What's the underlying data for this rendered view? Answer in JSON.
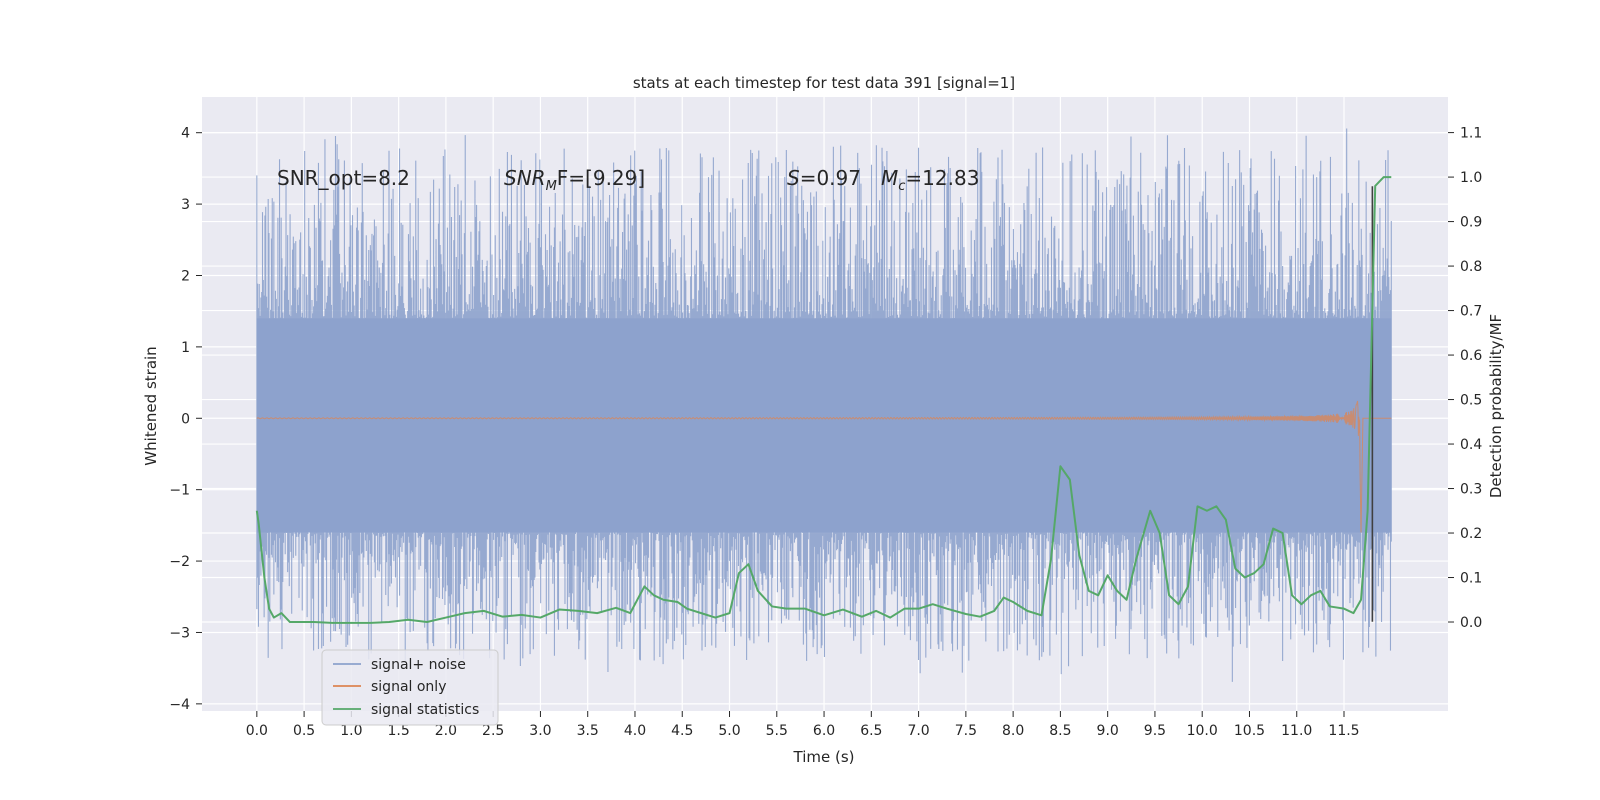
{
  "chart_data": {
    "type": "line",
    "title": "stats at each timestep for test data 391 [signal=1]",
    "xlabel": "Time (s)",
    "ylabel": "Whitened strain",
    "ylabel_right": "Detection probability/MF",
    "xlim": [
      -0.58,
      12.6
    ],
    "ylim": [
      -4.1,
      4.5
    ],
    "ylim_right": [
      -0.2,
      1.18
    ],
    "x_ticks": [
      0.0,
      0.5,
      1.0,
      1.5,
      2.0,
      2.5,
      3.0,
      3.5,
      4.0,
      4.5,
      5.0,
      5.5,
      6.0,
      6.5,
      7.0,
      7.5,
      8.0,
      8.5,
      9.0,
      9.5,
      10.0,
      10.5,
      11.0,
      11.5
    ],
    "x_tick_labels": [
      "0.0",
      "0.5",
      "1.0",
      "1.5",
      "2.0",
      "2.5",
      "3.0",
      "3.5",
      "4.0",
      "4.5",
      "5.0",
      "5.5",
      "6.0",
      "6.5",
      "7.0",
      "7.5",
      "8.0",
      "8.5",
      "9.0",
      "9.5",
      "10.0",
      "10.5",
      "11.0",
      "11.5"
    ],
    "y_ticks": [
      4,
      3,
      2,
      1,
      0,
      -1,
      -2,
      -3,
      -4
    ],
    "y_tick_labels": [
      "4",
      "3",
      "2",
      "1",
      "0",
      "−1",
      "−2",
      "−3",
      "−4"
    ],
    "y_right_ticks": [
      1.1,
      1.0,
      0.9,
      0.8,
      0.7,
      0.6,
      0.5,
      0.4,
      0.3,
      0.2,
      0.1,
      0.0
    ],
    "y_right_tick_labels": [
      "1.1",
      "1.0",
      "0.9",
      "0.8",
      "0.7",
      "0.6",
      "0.5",
      "0.4",
      "0.3",
      "0.2",
      "0.1",
      "0.0"
    ],
    "annotations": {
      "snr_opt": "SNR_opt=8.2",
      "snr_mf_base": "SNR",
      "snr_mf_sub": "M",
      "snr_mf_rest": "F=[9.29]",
      "s_symbol": "S",
      "s_value": "=0.97",
      "mc_symbol": "M",
      "mc_sub": "c",
      "mc_value": "=12.83"
    },
    "legend": {
      "position": "lower-left",
      "entries": [
        "signal+ noise",
        "signal only",
        "signal statistics"
      ]
    },
    "colors": {
      "plot_bg": "#eaeaf2",
      "grid": "#ffffff",
      "noise": "#8da2cc",
      "signal": "#dd8452",
      "stats": "#55a868",
      "marker": "#404040",
      "text": "#262626"
    },
    "series": [
      {
        "name": "signal+ noise",
        "kind": "noise_band",
        "x_range": [
          0.0,
          12.0
        ],
        "envelope_upper": 1.4,
        "envelope_lower": -1.6,
        "peak_max": 4.1,
        "peak_min": -3.7
      },
      {
        "name": "signal only",
        "kind": "chirp",
        "x_range": [
          0.0,
          12.0
        ],
        "merger_time": 11.67,
        "peak_amplitude": 1.2,
        "peak_min": -1.6
      },
      {
        "name": "signal statistics",
        "axis": "right",
        "x": [
          0.0,
          0.02,
          0.08,
          0.13,
          0.18,
          0.26,
          0.35,
          0.45,
          0.6,
          0.8,
          1.0,
          1.2,
          1.4,
          1.6,
          1.8,
          2.0,
          2.2,
          2.4,
          2.6,
          2.8,
          3.0,
          3.2,
          3.4,
          3.6,
          3.8,
          3.95,
          4.1,
          4.2,
          4.3,
          4.45,
          4.55,
          4.7,
          4.85,
          5.0,
          5.1,
          5.2,
          5.3,
          5.45,
          5.6,
          5.8,
          6.0,
          6.2,
          6.4,
          6.55,
          6.7,
          6.85,
          7.0,
          7.15,
          7.3,
          7.5,
          7.65,
          7.8,
          7.9,
          8.0,
          8.15,
          8.3,
          8.4,
          8.5,
          8.6,
          8.7,
          8.8,
          8.9,
          9.0,
          9.1,
          9.2,
          9.3,
          9.45,
          9.55,
          9.65,
          9.75,
          9.85,
          9.95,
          10.05,
          10.15,
          10.25,
          10.35,
          10.45,
          10.55,
          10.65,
          10.75,
          10.85,
          10.95,
          11.05,
          11.15,
          11.25,
          11.35,
          11.5,
          11.6,
          11.68,
          11.75,
          11.83,
          11.92,
          12.0
        ],
        "y": [
          0.25,
          0.22,
          0.1,
          0.03,
          0.01,
          0.02,
          0.0,
          0.0,
          0.0,
          -0.002,
          -0.002,
          -0.002,
          0.0,
          0.005,
          0.0,
          0.01,
          0.02,
          0.025,
          0.012,
          0.016,
          0.01,
          0.028,
          0.025,
          0.02,
          0.032,
          0.02,
          0.08,
          0.06,
          0.05,
          0.045,
          0.03,
          0.02,
          0.01,
          0.02,
          0.11,
          0.13,
          0.07,
          0.035,
          0.03,
          0.03,
          0.015,
          0.028,
          0.012,
          0.025,
          0.01,
          0.03,
          0.03,
          0.04,
          0.03,
          0.018,
          0.012,
          0.025,
          0.055,
          0.045,
          0.025,
          0.015,
          0.14,
          0.35,
          0.32,
          0.15,
          0.07,
          0.06,
          0.105,
          0.07,
          0.05,
          0.14,
          0.25,
          0.2,
          0.06,
          0.04,
          0.08,
          0.26,
          0.25,
          0.26,
          0.23,
          0.12,
          0.1,
          0.11,
          0.13,
          0.21,
          0.2,
          0.06,
          0.04,
          0.06,
          0.07,
          0.035,
          0.03,
          0.02,
          0.05,
          0.25,
          0.98,
          1.0,
          1.0
        ]
      }
    ],
    "marker_line": {
      "x": 11.8,
      "y_top": 3.25,
      "y_bottom": -2.85
    }
  }
}
